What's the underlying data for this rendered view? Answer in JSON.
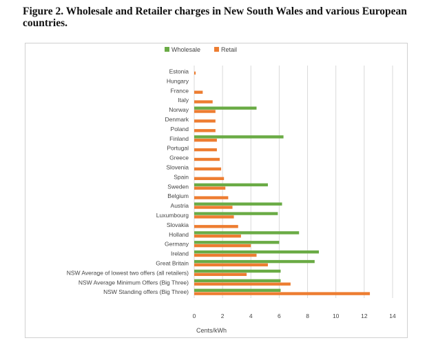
{
  "figure": {
    "title": "Figure 2. Wholesale and Retailer charges in New South Wales and various European countries."
  },
  "chart_data": {
    "type": "bar",
    "orientation": "horizontal",
    "xlabel": "Cents/kWh",
    "xlim": [
      0,
      14
    ],
    "xticks": [
      0,
      2,
      4,
      6,
      8,
      10,
      12,
      14
    ],
    "grid": true,
    "legend_placement": "top",
    "colors": {
      "Wholesale": "#6aab45",
      "Retail": "#ed7d31"
    },
    "categories": [
      "Estonia",
      "Hungary",
      "France",
      "Italy",
      "Norway",
      "Denmark",
      "Poland",
      "Finland",
      "Portugal",
      "Greece",
      "Slovenia",
      "Spain",
      "Sweden",
      "Belgium",
      "Austria",
      "Luxumbourg",
      "Slovakia",
      "Holland",
      "Germany",
      "Ireland",
      "Great Britain",
      "NSW Average of lowest two offers (all retailers)",
      "NSW Average Minimum Offers (Big Three)",
      "NSW Standing offers (Big Three)"
    ],
    "series": [
      {
        "name": "Wholesale",
        "values": [
          0,
          0,
          0,
          0,
          4.4,
          0,
          0,
          6.3,
          0,
          0,
          0,
          0,
          5.2,
          0,
          6.2,
          5.9,
          0,
          7.4,
          6.0,
          8.8,
          8.5,
          6.1,
          6.1,
          6.1
        ]
      },
      {
        "name": "Retail",
        "values": [
          0.1,
          0,
          0.6,
          1.3,
          1.5,
          1.5,
          1.5,
          1.6,
          1.6,
          1.8,
          1.9,
          2.1,
          2.2,
          2.4,
          2.7,
          2.8,
          3.1,
          3.3,
          4.0,
          4.4,
          5.2,
          3.7,
          6.8,
          12.4
        ]
      }
    ]
  }
}
